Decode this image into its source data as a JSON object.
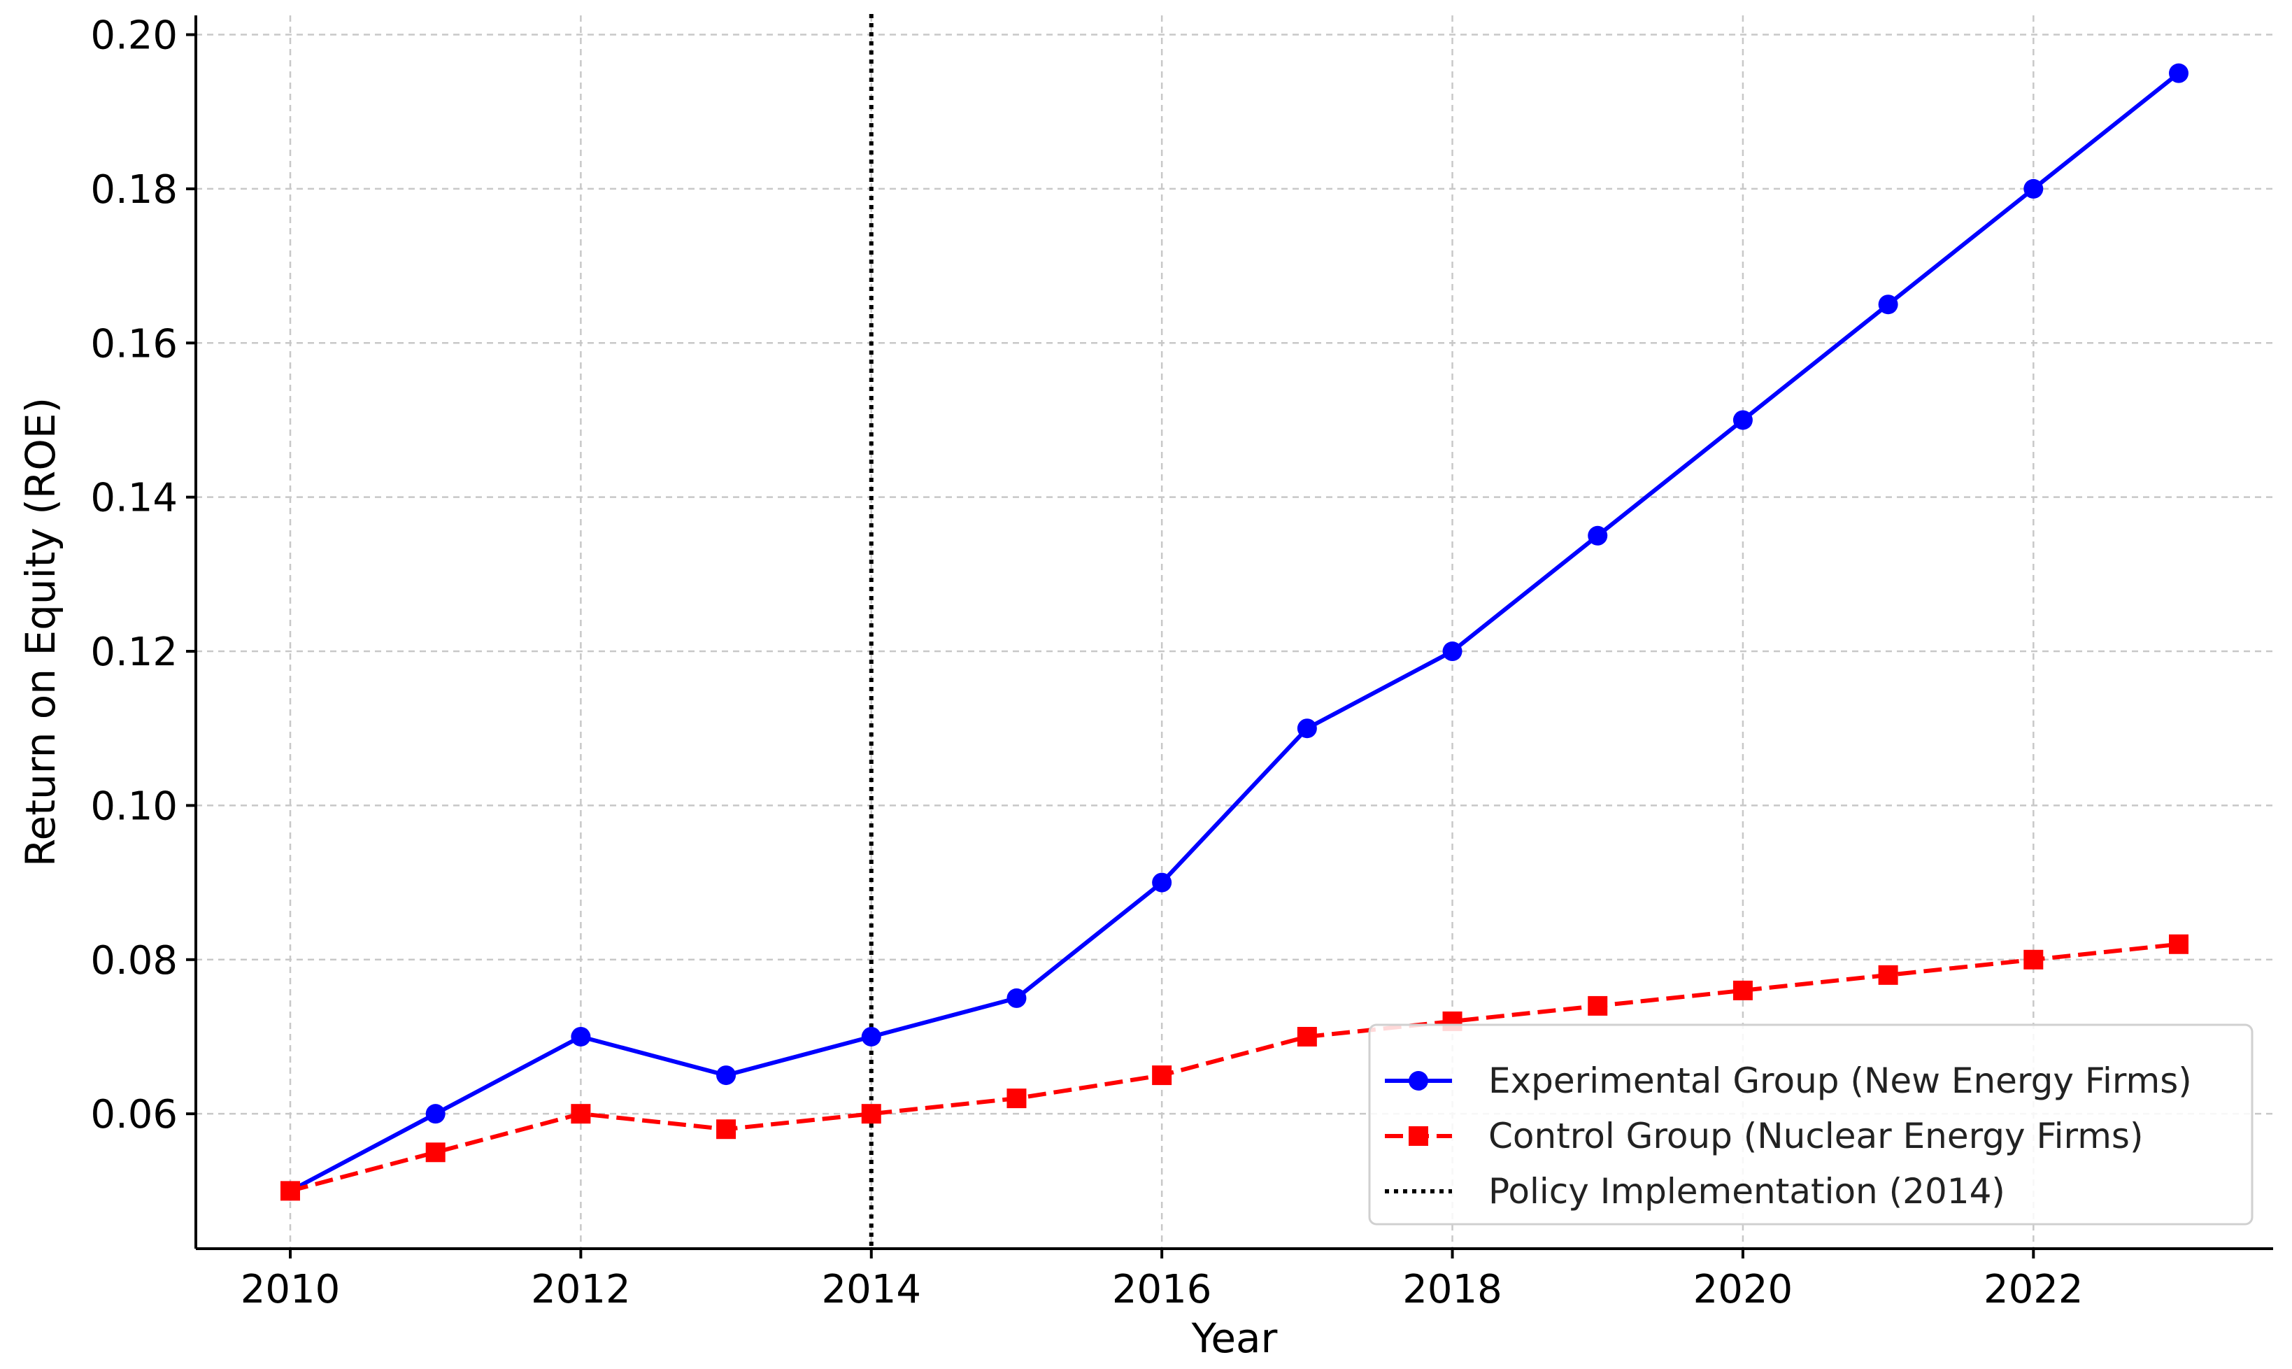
{
  "chart_data": {
    "type": "line",
    "xlabel": "Year",
    "ylabel": "Return on Equity (ROE)",
    "xlim": [
      2009.35,
      2023.65
    ],
    "ylim": [
      0.0425,
      0.2025
    ],
    "x_ticks": [
      2010,
      2012,
      2014,
      2016,
      2018,
      2020,
      2022
    ],
    "y_ticks": [
      0.06,
      0.08,
      0.1,
      0.12,
      0.14,
      0.16,
      0.18,
      0.2
    ],
    "x_tick_labels": [
      "2010",
      "2012",
      "2014",
      "2016",
      "2018",
      "2020",
      "2022"
    ],
    "y_tick_labels": [
      "0.06",
      "0.08",
      "0.10",
      "0.12",
      "0.14",
      "0.16",
      "0.18",
      "0.20"
    ],
    "grid": true,
    "legend_position": "lower-right",
    "x": [
      2010,
      2011,
      2012,
      2013,
      2014,
      2015,
      2016,
      2017,
      2018,
      2019,
      2020,
      2021,
      2022,
      2023
    ],
    "series": [
      {
        "name": "Experimental Group (New Energy Firms)",
        "color": "#0000ff",
        "line_style": "solid",
        "marker": "circle",
        "values": [
          0.05,
          0.06,
          0.07,
          0.065,
          0.07,
          0.075,
          0.09,
          0.11,
          0.12,
          0.135,
          0.15,
          0.165,
          0.18,
          0.195
        ]
      },
      {
        "name": "Control Group (Nuclear Energy Firms)",
        "color": "#ff0000",
        "line_style": "dashed",
        "marker": "square",
        "values": [
          0.05,
          0.055,
          0.06,
          0.058,
          0.06,
          0.062,
          0.065,
          0.07,
          0.072,
          0.074,
          0.076,
          0.078,
          0.08,
          0.082
        ]
      }
    ],
    "vertical_line": {
      "name": "Policy Implementation (2014)",
      "x": 2014,
      "color": "#000000",
      "line_style": "dotted"
    }
  }
}
